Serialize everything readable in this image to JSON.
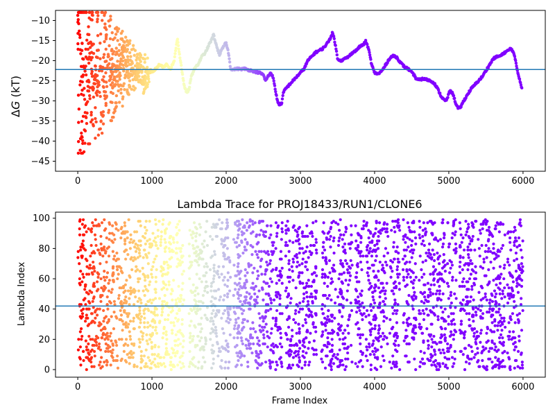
{
  "chart_data": [
    {
      "type": "scatter",
      "title": "",
      "xlabel": "",
      "ylabel_prefix": "Δ",
      "ylabel_var": "G",
      "ylabel_suffix": " (kT)",
      "xlim": [
        -300,
        6300
      ],
      "ylim": [
        -47.5,
        -7.5
      ],
      "xticks": [
        "0",
        "1000",
        "2000",
        "3000",
        "4000",
        "5000",
        "6000"
      ],
      "yticks": [
        "−10",
        "−15",
        "−20",
        "−25",
        "−30",
        "−35",
        "−40",
        "−45"
      ],
      "xtick_values": [
        0,
        1000,
        2000,
        3000,
        4000,
        5000,
        6000
      ],
      "ytick_values": [
        -10,
        -15,
        -20,
        -25,
        -30,
        -35,
        -40,
        -45
      ],
      "reference_line": -22.2,
      "reference_color": "#1f77b4",
      "colormap": "rainbow (early frames red, late frames violet)",
      "trace_points": [
        [
          0,
          -10
        ],
        [
          20,
          -12
        ],
        [
          40,
          -18
        ],
        [
          60,
          -26
        ],
        [
          80,
          -22
        ],
        [
          100,
          -33
        ],
        [
          120,
          -37
        ],
        [
          150,
          -20
        ],
        [
          180,
          -15
        ],
        [
          200,
          -27
        ],
        [
          230,
          -23
        ],
        [
          260,
          -29
        ],
        [
          290,
          -24
        ],
        [
          320,
          -21
        ],
        [
          350,
          -26
        ],
        [
          380,
          -30
        ],
        [
          410,
          -19
        ],
        [
          440,
          -25
        ],
        [
          470,
          -22
        ],
        [
          500,
          -27
        ],
        [
          530,
          -20
        ],
        [
          560,
          -24
        ],
        [
          600,
          -18
        ],
        [
          630,
          -26
        ],
        [
          660,
          -22
        ],
        [
          700,
          -25
        ],
        [
          730,
          -21
        ],
        [
          760,
          -24
        ],
        [
          800,
          -23
        ],
        [
          840,
          -20
        ],
        [
          880,
          -27
        ],
        [
          920,
          -26
        ],
        [
          960,
          -24
        ],
        [
          1000,
          -23
        ],
        [
          1050,
          -22
        ],
        [
          1100,
          -21
        ],
        [
          1150,
          -21.5
        ],
        [
          1200,
          -21
        ],
        [
          1250,
          -22
        ],
        [
          1300,
          -20
        ],
        [
          1330,
          -16
        ],
        [
          1345,
          -14.5
        ],
        [
          1360,
          -17
        ],
        [
          1400,
          -22
        ],
        [
          1430,
          -26
        ],
        [
          1460,
          -27.5
        ],
        [
          1480,
          -28
        ],
        [
          1500,
          -27
        ],
        [
          1530,
          -24
        ],
        [
          1570,
          -22
        ],
        [
          1620,
          -21
        ],
        [
          1670,
          -19
        ],
        [
          1720,
          -18
        ],
        [
          1770,
          -16
        ],
        [
          1810,
          -14.5
        ],
        [
          1830,
          -13.5
        ],
        [
          1850,
          -15
        ],
        [
          1880,
          -17
        ],
        [
          1910,
          -18.5
        ],
        [
          1950,
          -17
        ],
        [
          1980,
          -16
        ],
        [
          2000,
          -15.5
        ],
        [
          2030,
          -18
        ],
        [
          2060,
          -22
        ],
        [
          2100,
          -22.2
        ],
        [
          2150,
          -22
        ],
        [
          2200,
          -22.1
        ],
        [
          2250,
          -22
        ],
        [
          2300,
          -22.3
        ],
        [
          2350,
          -22.5
        ],
        [
          2400,
          -22.8
        ],
        [
          2450,
          -23
        ],
        [
          2500,
          -23.5
        ],
        [
          2530,
          -25
        ],
        [
          2560,
          -24
        ],
        [
          2600,
          -23
        ],
        [
          2630,
          -24
        ],
        [
          2660,
          -27
        ],
        [
          2690,
          -30
        ],
        [
          2720,
          -31
        ],
        [
          2750,
          -30.5
        ],
        [
          2770,
          -28
        ],
        [
          2800,
          -27
        ],
        [
          2850,
          -26
        ],
        [
          2900,
          -25
        ],
        [
          2950,
          -24
        ],
        [
          3000,
          -23
        ],
        [
          3050,
          -22
        ],
        [
          3100,
          -20
        ],
        [
          3150,
          -19
        ],
        [
          3200,
          -18
        ],
        [
          3250,
          -17.5
        ],
        [
          3300,
          -17
        ],
        [
          3350,
          -16
        ],
        [
          3400,
          -14.5
        ],
        [
          3430,
          -13.2
        ],
        [
          3450,
          -14
        ],
        [
          3480,
          -17
        ],
        [
          3500,
          -19.5
        ],
        [
          3550,
          -20
        ],
        [
          3600,
          -19.5
        ],
        [
          3650,
          -19
        ],
        [
          3700,
          -18
        ],
        [
          3750,
          -17.5
        ],
        [
          3800,
          -16.5
        ],
        [
          3850,
          -16
        ],
        [
          3880,
          -15.2
        ],
        [
          3900,
          -16
        ],
        [
          3930,
          -18
        ],
        [
          3960,
          -21
        ],
        [
          4000,
          -23
        ],
        [
          4050,
          -23.3
        ],
        [
          4100,
          -22.5
        ],
        [
          4150,
          -21
        ],
        [
          4200,
          -19.5
        ],
        [
          4230,
          -19
        ],
        [
          4260,
          -18.8
        ],
        [
          4300,
          -19.2
        ],
        [
          4350,
          -20.5
        ],
        [
          4400,
          -21.5
        ],
        [
          4450,
          -22
        ],
        [
          4500,
          -23
        ],
        [
          4530,
          -23.5
        ],
        [
          4560,
          -24.5
        ],
        [
          4600,
          -24.8
        ],
        [
          4650,
          -24.5
        ],
        [
          4700,
          -24.7
        ],
        [
          4750,
          -25
        ],
        [
          4800,
          -25.5
        ],
        [
          4850,
          -27
        ],
        [
          4900,
          -29
        ],
        [
          4950,
          -30
        ],
        [
          4980,
          -29.5
        ],
        [
          5000,
          -28
        ],
        [
          5030,
          -27.5
        ],
        [
          5060,
          -28.5
        ],
        [
          5100,
          -31
        ],
        [
          5130,
          -32
        ],
        [
          5160,
          -31.5
        ],
        [
          5200,
          -30
        ],
        [
          5250,
          -28.5
        ],
        [
          5300,
          -27
        ],
        [
          5350,
          -26
        ],
        [
          5400,
          -25
        ],
        [
          5450,
          -24
        ],
        [
          5500,
          -22.5
        ],
        [
          5550,
          -21
        ],
        [
          5600,
          -19.5
        ],
        [
          5650,
          -19
        ],
        [
          5700,
          -18.8
        ],
        [
          5750,
          -18
        ],
        [
          5800,
          -17.5
        ],
        [
          5830,
          -17
        ],
        [
          5850,
          -17.2
        ],
        [
          5870,
          -18
        ],
        [
          5900,
          -20
        ],
        [
          5930,
          -23
        ],
        [
          5960,
          -25
        ],
        [
          5990,
          -27.5
        ]
      ],
      "early_scatter": {
        "x_range": [
          0,
          950
        ],
        "y_range": [
          -43,
          -8
        ],
        "point_count": 420
      }
    },
    {
      "type": "scatter",
      "title": "Lambda Trace for PROJ18433/RUN1/CLONE6",
      "xlabel": "Frame Index",
      "ylabel": "Lambda Index",
      "xlim": [
        -300,
        6300
      ],
      "ylim": [
        -5,
        104
      ],
      "xticks": [
        "0",
        "1000",
        "2000",
        "3000",
        "4000",
        "5000",
        "6000"
      ],
      "yticks": [
        "0",
        "20",
        "40",
        "60",
        "80",
        "100"
      ],
      "xtick_values": [
        0,
        1000,
        2000,
        3000,
        4000,
        5000,
        6000
      ],
      "ytick_values": [
        0,
        20,
        40,
        60,
        80,
        100
      ],
      "reference_line": 42,
      "reference_color": "#1f77b4",
      "colormap": "rainbow (early frames red, late frames violet)",
      "occupied_x_segments": [
        [
          0,
          1430
        ],
        [
          1500,
          1750
        ],
        [
          1780,
          1910
        ],
        [
          1920,
          2060
        ],
        [
          2100,
          2650
        ],
        [
          2660,
          2760
        ],
        [
          2800,
          3000
        ],
        [
          3020,
          3220
        ],
        [
          3280,
          3480
        ],
        [
          3500,
          3700
        ],
        [
          3740,
          3860
        ],
        [
          3880,
          4180
        ],
        [
          4200,
          4340
        ],
        [
          4380,
          4560
        ],
        [
          4600,
          4960
        ],
        [
          4980,
          5100
        ],
        [
          5140,
          5760
        ],
        [
          5790,
          6000
        ]
      ],
      "point_count": 6000
    }
  ]
}
